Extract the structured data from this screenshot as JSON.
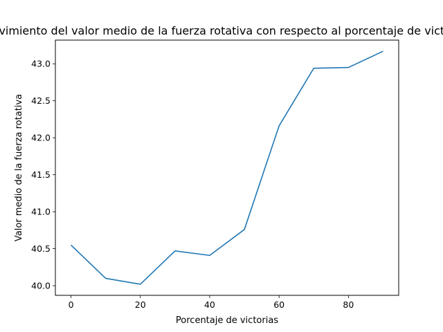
{
  "chart_data": {
    "type": "line",
    "title": "Movimiento del valor medio de la fuerza rotativa con respecto al porcentaje de victorias",
    "xlabel": "Porcentaje de victorias",
    "ylabel": "Valor medio de la fuerza rotativa",
    "xlim": [
      -4.5,
      94.5
    ],
    "ylim": [
      39.87,
      43.32
    ],
    "x_ticks": [
      0,
      20,
      40,
      60,
      80
    ],
    "x_tick_labels": [
      "0",
      "20",
      "40",
      "60",
      "80"
    ],
    "y_ticks": [
      40.0,
      40.5,
      41.0,
      41.5,
      42.0,
      42.5,
      43.0
    ],
    "y_tick_labels": [
      "40.0",
      "40.5",
      "41.0",
      "41.5",
      "42.0",
      "42.5",
      "43.0"
    ],
    "grid": false,
    "series": [
      {
        "color": "#1f77b4",
        "x": [
          0,
          10,
          20,
          30,
          40,
          50,
          60,
          70,
          80,
          90
        ],
        "y": [
          40.55,
          40.1,
          40.02,
          40.47,
          40.41,
          40.76,
          42.16,
          42.94,
          42.95,
          43.17
        ]
      }
    ]
  }
}
